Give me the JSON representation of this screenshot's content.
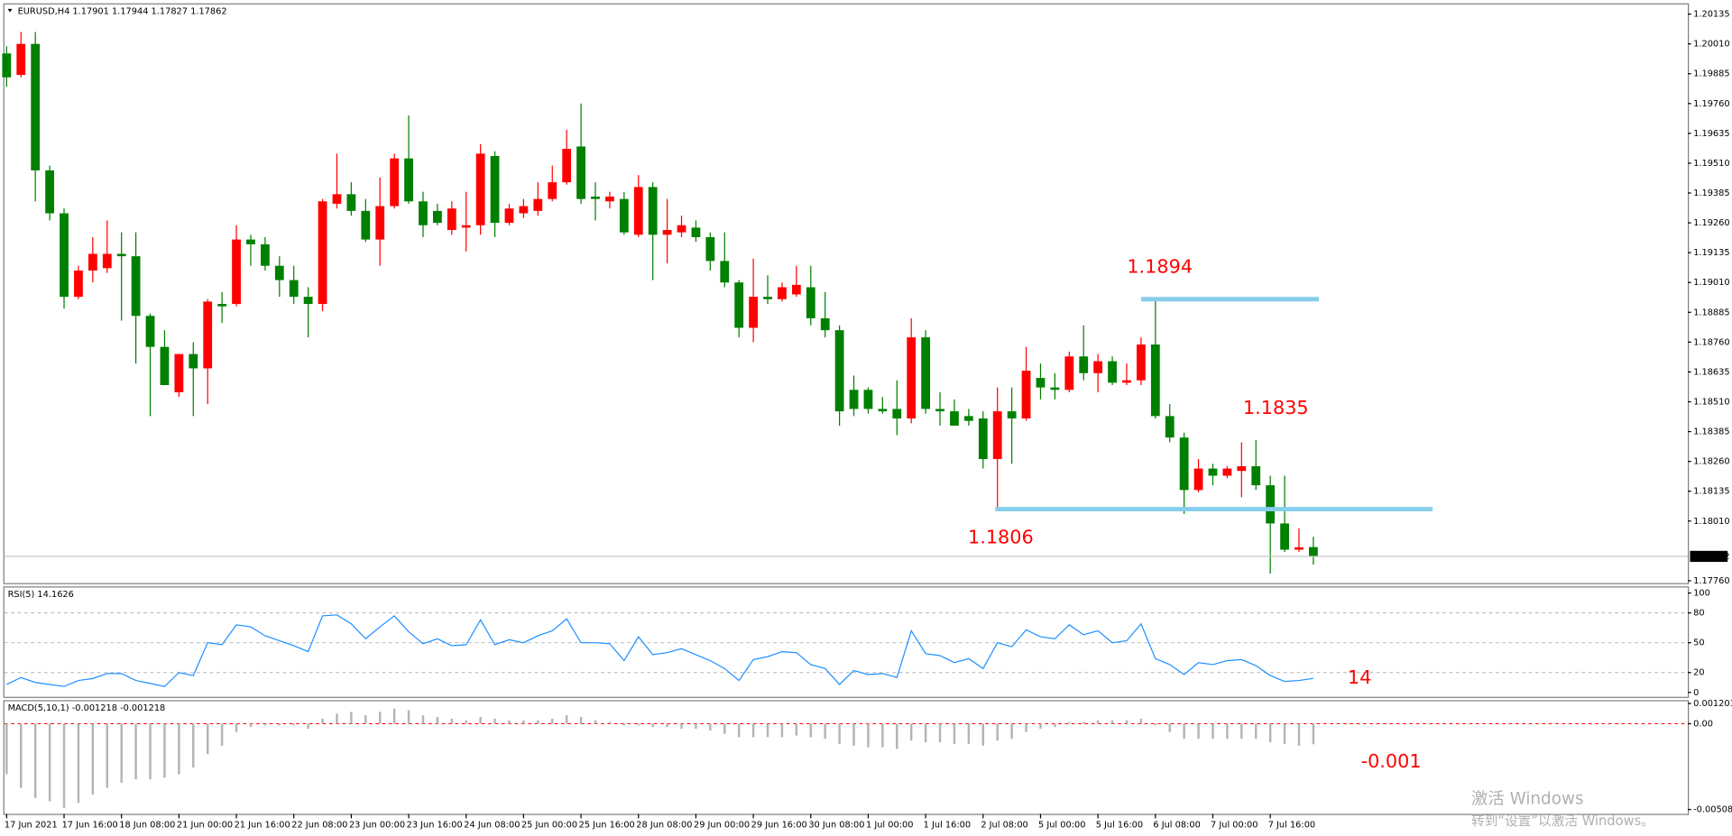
{
  "chart_data": [
    {
      "type": "candlestick",
      "title": "EURUSD,H4",
      "categories": [
        "17 Jun 2021",
        null,
        null,
        null,
        "17 Jun 16:00",
        null,
        null,
        null,
        "18 Jun 08:00",
        null,
        null,
        null,
        "21 Jun 00:00",
        null,
        null,
        null,
        "21 Jun 16:00",
        null,
        null,
        null,
        "22 Jun 08:00",
        null,
        null,
        null,
        "23 Jun 00:00",
        null,
        null,
        null,
        "23 Jun 16:00",
        null,
        null,
        null,
        "24 Jun 08:00",
        null,
        null,
        null,
        "25 Jun 00:00",
        null,
        null,
        null,
        "25 Jun 16:00",
        null,
        null,
        null,
        "28 Jun 08:00",
        null,
        null,
        null,
        "29 Jun 00:00",
        null,
        null,
        null,
        "29 Jun 16:00",
        null,
        null,
        null,
        "30 Jun 08:00",
        null,
        null,
        null,
        "1 Jul 00:00",
        null,
        null,
        null,
        "1 Jul 16:00",
        null,
        null,
        null,
        "2 Jul 08:00",
        null,
        null,
        null,
        "5 Jul 00:00",
        null,
        null,
        null,
        "5 Jul 16:00",
        null,
        null,
        null,
        "6 Jul 08:00",
        null,
        null,
        null,
        "7 Jul 00:00",
        null,
        null,
        null,
        "7 Jul 16:00",
        null,
        null,
        null
      ],
      "open": [
        1.1997,
        1.1988,
        1.2001,
        1.1948,
        1.193,
        1.1895,
        1.1906,
        1.1907,
        1.1913,
        1.1912,
        1.1887,
        1.1874,
        1.1855,
        1.1871,
        1.1865,
        1.1892,
        1.1892,
        1.1919,
        1.1917,
        1.1908,
        1.1902,
        1.1895,
        1.1892,
        1.1934,
        1.1938,
        1.1931,
        1.1919,
        1.1933,
        1.1953,
        1.1935,
        1.1931,
        1.1923,
        1.1924,
        1.1925,
        1.1954,
        1.1926,
        1.193,
        1.1931,
        1.1936,
        1.1943,
        1.1958,
        1.1937,
        1.1935,
        1.1936,
        1.1921,
        1.1941,
        1.1921,
        1.1922,
        1.1924,
        1.192,
        1.191,
        1.1901,
        1.1882,
        1.1895,
        1.1894,
        1.1896,
        1.1899,
        1.1886,
        1.1881,
        1.1856,
        1.1856,
        1.1848,
        1.1848,
        1.1844,
        1.1878,
        1.1848,
        1.1847,
        1.1845,
        1.1844,
        1.1827,
        1.1847,
        1.1844,
        1.1861,
        1.1857,
        1.1856,
        1.187,
        1.1863,
        1.1868,
        1.1859,
        1.186,
        1.1875,
        1.1845,
        1.1836,
        1.1814,
        1.1823,
        1.182,
        1.1822,
        1.1824,
        1.1816,
        1.18,
        1.1789,
        1.17901
      ],
      "high": [
        1.2,
        1.2006,
        1.2006,
        1.195,
        1.1932,
        1.1908,
        1.192,
        1.1927,
        1.1922,
        1.1922,
        1.1888,
        1.1881,
        1.1871,
        1.1876,
        1.1894,
        1.1897,
        1.1925,
        1.1921,
        1.192,
        1.1912,
        1.1908,
        1.1899,
        1.1936,
        1.1955,
        1.1943,
        1.1936,
        1.1945,
        1.1955,
        1.1971,
        1.1939,
        1.1934,
        1.1935,
        1.1939,
        1.1959,
        1.1956,
        1.1934,
        1.1936,
        1.1943,
        1.195,
        1.1965,
        1.1976,
        1.1943,
        1.1939,
        1.1939,
        1.1946,
        1.1943,
        1.1936,
        1.1929,
        1.1927,
        1.1922,
        1.1922,
        1.1902,
        1.1911,
        1.1904,
        1.1901,
        1.1908,
        1.1908,
        1.1897,
        1.1883,
        1.1862,
        1.1857,
        1.1853,
        1.186,
        1.1886,
        1.1881,
        1.1855,
        1.1852,
        1.1848,
        1.1847,
        1.1857,
        1.1857,
        1.1874,
        1.1867,
        1.1863,
        1.1872,
        1.1883,
        1.1871,
        1.187,
        1.1867,
        1.1878,
        1.1894,
        1.185,
        1.1838,
        1.1827,
        1.1825,
        1.1824,
        1.1834,
        1.1835,
        1.182,
        1.182,
        1.1798,
        1.17944
      ],
      "low": [
        1.1983,
        1.1987,
        1.1935,
        1.1927,
        1.189,
        1.1894,
        1.1901,
        1.1905,
        1.1885,
        1.1867,
        1.1845,
        1.1858,
        1.1853,
        1.1845,
        1.185,
        1.1884,
        1.1891,
        1.1908,
        1.1906,
        1.1895,
        1.1892,
        1.1878,
        1.1889,
        1.1932,
        1.1929,
        1.1918,
        1.1908,
        1.1932,
        1.1934,
        1.192,
        1.1925,
        1.1921,
        1.1914,
        1.1921,
        1.192,
        1.1925,
        1.1928,
        1.1929,
        1.1935,
        1.1942,
        1.1934,
        1.1927,
        1.1932,
        1.1921,
        1.192,
        1.1902,
        1.1909,
        1.192,
        1.1918,
        1.1906,
        1.1899,
        1.1878,
        1.1876,
        1.1892,
        1.1893,
        1.1895,
        1.1883,
        1.1878,
        1.1841,
        1.1845,
        1.1846,
        1.1846,
        1.1837,
        1.1842,
        1.1846,
        1.1841,
        1.1841,
        1.1841,
        1.1823,
        1.1806,
        1.1825,
        1.1843,
        1.1852,
        1.1852,
        1.1855,
        1.186,
        1.1855,
        1.1858,
        1.1858,
        1.1858,
        1.1844,
        1.1834,
        1.1804,
        1.1813,
        1.1816,
        1.1819,
        1.1811,
        1.1814,
        1.1779,
        1.1788,
        1.1788,
        1.17827
      ],
      "close": [
        1.1987,
        1.2001,
        1.1948,
        1.193,
        1.1895,
        1.1906,
        1.1913,
        1.1913,
        1.1912,
        1.1887,
        1.1874,
        1.1858,
        1.1871,
        1.1865,
        1.1893,
        1.1891,
        1.1919,
        1.1917,
        1.1908,
        1.1902,
        1.1895,
        1.1892,
        1.1935,
        1.1938,
        1.1931,
        1.1919,
        1.1933,
        1.1953,
        1.1935,
        1.1925,
        1.1926,
        1.1932,
        1.1925,
        1.1955,
        1.1926,
        1.1932,
        1.1933,
        1.1936,
        1.1943,
        1.1957,
        1.1936,
        1.1936,
        1.1937,
        1.1922,
        1.1941,
        1.1921,
        1.1923,
        1.1925,
        1.192,
        1.191,
        1.1901,
        1.1882,
        1.1895,
        1.1894,
        1.1899,
        1.19,
        1.1886,
        1.1881,
        1.1847,
        1.1848,
        1.1848,
        1.1847,
        1.1844,
        1.1878,
        1.1848,
        1.1847,
        1.1841,
        1.1843,
        1.1827,
        1.1847,
        1.1844,
        1.1864,
        1.1857,
        1.1856,
        1.187,
        1.1863,
        1.1868,
        1.1859,
        1.186,
        1.1875,
        1.1845,
        1.1836,
        1.1814,
        1.1823,
        1.182,
        1.1823,
        1.1824,
        1.1816,
        1.18,
        1.1789,
        1.179,
        1.17862
      ],
      "up_color": "#ff0000",
      "down_color": "#008000",
      "ylim": [
        1.1775,
        1.2018
      ],
      "yticks": [
        1.20135,
        {
          "value": 1.2001,
          "label": "1.20010"
        },
        1.19885,
        {
          "value": 1.1976,
          "label": "1.19760"
        },
        1.19635,
        {
          "value": 1.1951,
          "label": "1.19510"
        },
        1.19385,
        {
          "value": 1.1926,
          "label": "1.19260"
        },
        1.19135,
        {
          "value": 1.1901,
          "label": "1.19010"
        },
        1.18885,
        {
          "value": 1.1876,
          "label": "1.18760"
        },
        1.18635,
        {
          "value": 1.1851,
          "label": "1.18510"
        },
        1.18385,
        {
          "value": 1.1826,
          "label": "1.18260"
        },
        1.18135,
        {
          "value": 1.1801,
          "label": "1.18010"
        },
        {
          "value": 1.1776,
          "label": "1.17760"
        }
      ],
      "hlines": [
        {
          "value": 1.1894,
          "color": "#87ceeb"
        },
        {
          "value": 1.1806,
          "color": "#87ceeb"
        }
      ],
      "annotations": [
        "1.1894",
        "1.1835",
        "1.1806"
      ]
    },
    {
      "type": "line",
      "title": "RSI(5)",
      "values": [
        8,
        15,
        10,
        8,
        6,
        12,
        14,
        19,
        19,
        12,
        9,
        6,
        20,
        17,
        50,
        48,
        68,
        66,
        57,
        52,
        47,
        41,
        77,
        78,
        69,
        54,
        66,
        77,
        61,
        49,
        54,
        47,
        48,
        73,
        48,
        53,
        50,
        57,
        62,
        74,
        50,
        50,
        49,
        32,
        56,
        38,
        40,
        44,
        38,
        32,
        24,
        12,
        33,
        36,
        41,
        40,
        28,
        24,
        8,
        22,
        18,
        19,
        15,
        62,
        39,
        37,
        30,
        34,
        24,
        50,
        46,
        63,
        56,
        54,
        68,
        58,
        62,
        50,
        52,
        69,
        34,
        28,
        18,
        30,
        28,
        32,
        33,
        27,
        17,
        11,
        12,
        14.1626
      ],
      "color": "#1e90ff",
      "ylim": [
        0,
        100
      ],
      "yticks": [
        100,
        80,
        50,
        20,
        0
      ],
      "grid": true,
      "grid_color": "#b0b0b0",
      "annotations": [
        "14"
      ]
    },
    {
      "type": "bar",
      "title": "MACD(5,10,1)",
      "values": [
        -0.003,
        -0.0038,
        -0.0044,
        -0.0046,
        -0.005,
        -0.0047,
        -0.0042,
        -0.0038,
        -0.0035,
        -0.0033,
        -0.0033,
        -0.0032,
        -0.003,
        -0.0026,
        -0.0018,
        -0.0013,
        -0.0005,
        -0.0002,
        -0.0001,
        -0.0001,
        -0.0001,
        -0.0003,
        0.0003,
        0.0006,
        0.0007,
        0.0005,
        0.0007,
        0.0009,
        0.0008,
        0.0005,
        0.0004,
        0.0003,
        0.0002,
        0.0004,
        0.0003,
        0.0002,
        0.0002,
        0.0002,
        0.0003,
        0.0005,
        0.0004,
        0.0002,
        0.0001,
        -0.0001,
        -0.0001,
        -0.0002,
        -0.0002,
        -0.0003,
        -0.0003,
        -0.0004,
        -0.0006,
        -0.0008,
        -0.0008,
        -0.0008,
        -0.0008,
        -0.0007,
        -0.0008,
        -0.0009,
        -0.0012,
        -0.0013,
        -0.0014,
        -0.0014,
        -0.0015,
        -0.001,
        -0.0011,
        -0.0011,
        -0.0012,
        -0.0012,
        -0.0013,
        -0.001,
        -0.0009,
        -0.0005,
        -0.0003,
        -0.0002,
        0.0001,
        0.0001,
        0.0002,
        0.0002,
        0.0002,
        0.0003,
        -0.0001,
        -0.0005,
        -0.0009,
        -0.0009,
        -0.0009,
        -0.0009,
        -0.0009,
        -0.0009,
        -0.0011,
        -0.0012,
        -0.0013,
        -0.001218
      ],
      "color": "#b4b4b4",
      "ylim": [
        -0.005088,
        0.001201
      ],
      "yticks": [
        0.001201,
        {
          "value": 0,
          "label": "0.00"
        },
        -0.005088
      ],
      "grid": true,
      "grid_color": "#ff0000",
      "annotations": [
        "-0.001"
      ]
    }
  ],
  "watermark": {
    "line1": "激活 Windows",
    "line2": "转到“设置”以激活 Windows。"
  }
}
